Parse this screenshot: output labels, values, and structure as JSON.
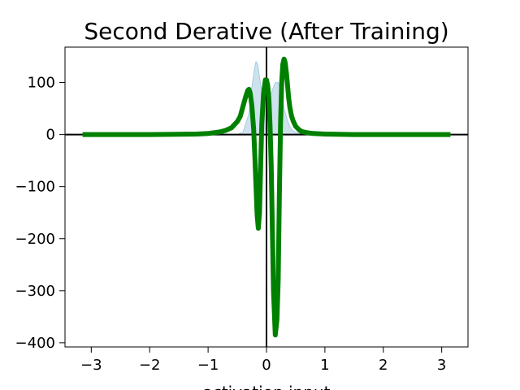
{
  "chart_data": {
    "type": "line",
    "title": "Second Derative (After Training)",
    "xlabel": "activation input",
    "ylabel": "",
    "xlim": [
      -3.45,
      3.45
    ],
    "ylim": [
      -408,
      168
    ],
    "x_ticks": [
      -3,
      -2,
      -1,
      0,
      1,
      2,
      3
    ],
    "x_tick_labels": [
      "−3",
      "−2",
      "−1",
      "0",
      "1",
      "2",
      "3"
    ],
    "y_ticks": [
      -400,
      -300,
      -200,
      -100,
      0,
      100
    ],
    "y_tick_labels": [
      "−400",
      "−300",
      "−200",
      "−100",
      "0",
      "100"
    ],
    "grid": false,
    "reference_lines": {
      "horizontal_at": 0,
      "vertical_at": 0
    },
    "colors": {
      "series": "#008000",
      "area": "#a6cbe0",
      "axes": "#000000"
    },
    "series": [
      {
        "kind": "line",
        "x": [
          -3.15,
          -2.5,
          -2.0,
          -1.5,
          -1.2,
          -1.0,
          -0.8,
          -0.7,
          -0.6,
          -0.5,
          -0.45,
          -0.4,
          -0.35,
          -0.32,
          -0.3,
          -0.28,
          -0.25,
          -0.22,
          -0.2,
          -0.18,
          -0.16,
          -0.14,
          -0.12,
          -0.1,
          -0.08,
          -0.05,
          -0.02,
          0.0,
          0.02,
          0.04,
          0.06,
          0.08,
          0.1,
          0.12,
          0.15,
          0.18,
          0.2,
          0.22,
          0.24,
          0.26,
          0.28,
          0.3,
          0.32,
          0.34,
          0.36,
          0.38,
          0.4,
          0.43,
          0.46,
          0.5,
          0.55,
          0.6,
          0.7,
          0.8,
          1.0,
          1.2,
          1.5,
          2.0,
          2.5,
          3.15
        ],
        "y": [
          0,
          0,
          0,
          0.5,
          1,
          2,
          5,
          8,
          13,
          25,
          35,
          55,
          75,
          85,
          87,
          80,
          55,
          10,
          -40,
          -100,
          -155,
          -180,
          -150,
          -60,
          20,
          80,
          105,
          105,
          95,
          70,
          20,
          -60,
          -180,
          -300,
          -385,
          -355,
          -280,
          -120,
          20,
          100,
          135,
          145,
          138,
          120,
          95,
          70,
          52,
          35,
          25,
          16,
          10,
          6,
          3.5,
          2,
          1,
          0.5,
          0,
          0,
          0,
          0
        ]
      },
      {
        "kind": "area",
        "x": [
          -3.15,
          -1.0,
          -0.6,
          -0.5,
          -0.4,
          -0.3,
          -0.25,
          -0.2,
          -0.18,
          -0.15,
          -0.12,
          -0.1,
          -0.08,
          -0.05,
          -0.02,
          0.0,
          0.05,
          0.1,
          0.15,
          0.2,
          0.25,
          0.3,
          0.35,
          0.4,
          0.45,
          0.5,
          0.6,
          0.7,
          1.0,
          3.15
        ],
        "y": [
          0,
          0,
          0,
          0,
          5,
          40,
          90,
          130,
          140,
          135,
          110,
          95,
          85,
          78,
          75,
          75,
          70,
          85,
          100,
          100,
          80,
          50,
          30,
          15,
          8,
          4,
          2,
          1,
          0,
          0
        ]
      }
    ]
  }
}
